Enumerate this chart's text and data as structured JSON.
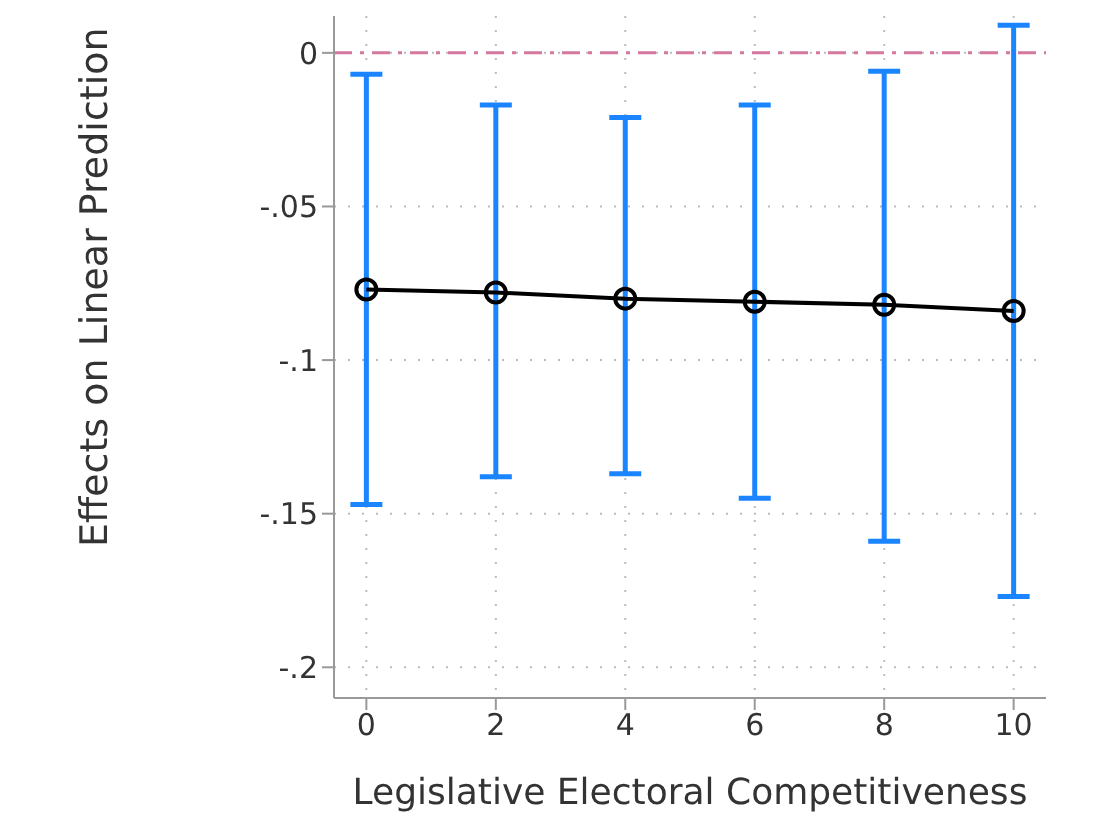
{
  "chart_data": {
    "type": "line",
    "xlabel": "Legislative Electoral Competitiveness",
    "ylabel": "Effects on Linear Prediction",
    "x": [
      0,
      2,
      4,
      6,
      8,
      10
    ],
    "series": [
      {
        "color": "#000000",
        "values": [
          -0.077,
          -0.078,
          -0.08,
          -0.081,
          -0.082,
          -0.084
        ],
        "errors": [
          [
            -0.147,
            -0.007
          ],
          [
            -0.138,
            -0.017
          ],
          [
            -0.137,
            -0.021
          ],
          [
            -0.145,
            -0.017
          ],
          [
            -0.159,
            -0.006
          ],
          [
            -0.177,
            0.009
          ]
        ]
      }
    ],
    "xlim": [
      -0.5,
      10.5
    ],
    "xticks": [
      0,
      2,
      4,
      6,
      8,
      10
    ],
    "ylim": [
      -0.21,
      0.012
    ],
    "yticks": [
      0,
      {
        "value": -0.05,
        "label": "-.05"
      },
      {
        "value": -0.1,
        "label": "-.1"
      },
      {
        "value": -0.15,
        "label": "-.15"
      },
      {
        "value": -0.2,
        "label": "-.2"
      }
    ],
    "ref_lines": [
      {
        "axis": "y",
        "value": 0,
        "color": "#d4789f",
        "line_style": "dashed"
      }
    ],
    "grid": true,
    "marker": "circle",
    "legend": false
  }
}
